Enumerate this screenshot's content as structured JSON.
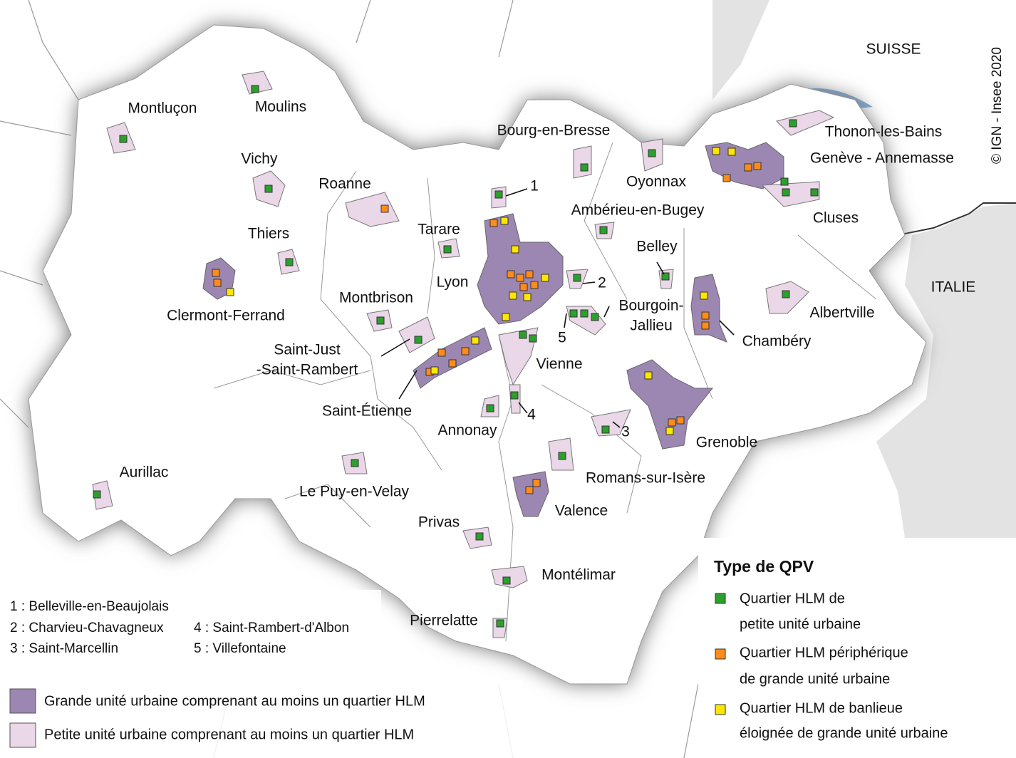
{
  "countries": [
    "SUISSE",
    "ITALIE"
  ],
  "credit": "© IGN - Insee 2020",
  "cities": [
    "Montluçon",
    "Moulins",
    "Vichy",
    "Thiers",
    "Clermont-Ferrand",
    "Roanne",
    "Tarare",
    "Lyon",
    "Montbrison",
    [
      "Saint-Just",
      "-Saint-Rambert"
    ],
    "Saint-Étienne",
    "Annonay",
    "Aurillac",
    "Le Puy-en-Velay",
    "Privas",
    "Montélimar",
    "Pierrelatte",
    "Valence",
    "Romans-sur-Isère",
    "Vienne",
    "Bourg-en-Bresse",
    "Oyonnax",
    "Ambérieu-en-Bugey",
    "Belley",
    [
      "Bourgoin-",
      "Jallieu"
    ],
    "Chambéry",
    "Grenoble",
    "Albertville",
    "Cluses",
    "Thonon-les-Bains",
    "Genève - Annemasse"
  ],
  "map_numbers": [
    "1",
    "2",
    "3",
    "4",
    "5"
  ],
  "footnotes": [
    "1 : Belleville-en-Beaujolais",
    "2 : Charvieu-Chavagneux",
    "3 : Saint-Marcellin",
    "4 : Saint-Rambert-d'Albon",
    "5 : Villefontaine"
  ],
  "units_legend": [
    "Grande unité urbaine comprenant au moins un quartier HLM",
    "Petite unité urbaine comprenant au moins un quartier HLM"
  ],
  "qpv_legend": {
    "title": "Type de QPV",
    "items": [
      [
        "Quartier HLM de",
        "petite unité urbaine"
      ],
      [
        "Quartier HLM périphérique",
        "de grande unité urbaine"
      ],
      [
        "Quartier HLM de banlieue",
        "éloignée de grande unité urbaine"
      ]
    ]
  }
}
